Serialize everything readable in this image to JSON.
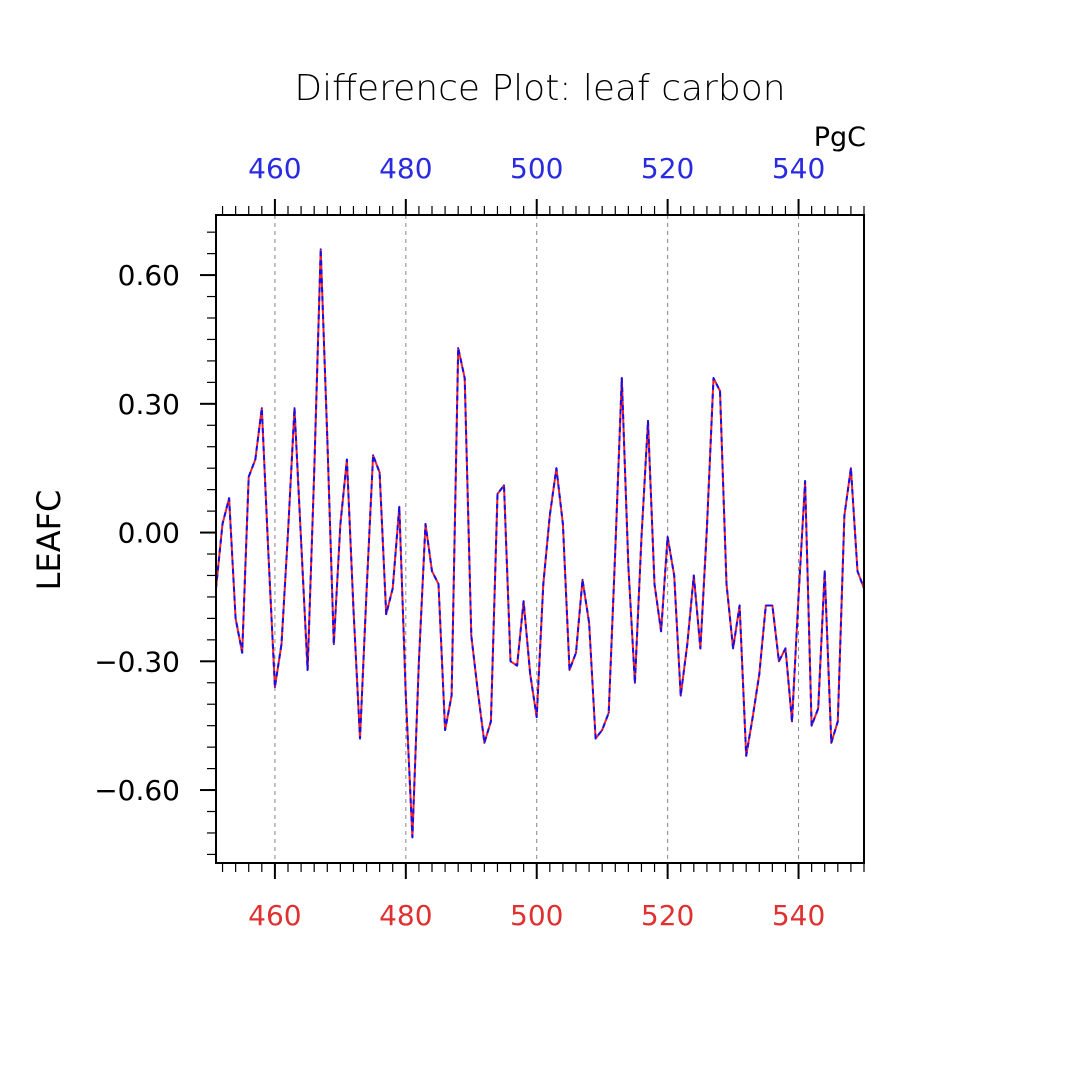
{
  "chart_data": {
    "type": "line",
    "title": "Difference Plot: leaf carbon",
    "units": "PgC",
    "ylabel": "LEAFC",
    "xlim": [
      451,
      550
    ],
    "ylim": [
      -0.77,
      0.74
    ],
    "x_ticks": [
      460,
      480,
      500,
      520,
      540
    ],
    "x_tick_labels": [
      "460",
      "480",
      "500",
      "520",
      "540"
    ],
    "y_ticks": [
      0.6,
      0.3,
      0.0,
      -0.3,
      -0.6
    ],
    "y_tick_labels": [
      "0.60",
      "0.30",
      "0.00",
      "−0.30",
      "−0.60"
    ],
    "grid": "vertical-dashed",
    "colors": {
      "top_tick_labels": "#2a2ae0",
      "bottom_tick_labels": "#e03030",
      "series_a": "#ff2020",
      "series_b": "#1010ee",
      "axes": "#000000",
      "grid": "#888888"
    },
    "series": [
      {
        "color": "#ff2020",
        "style": "solid",
        "x": [
          451,
          452,
          453,
          454,
          455,
          456,
          457,
          458,
          459,
          460,
          461,
          462,
          463,
          464,
          465,
          466,
          467,
          468,
          469,
          470,
          471,
          472,
          473,
          474,
          475,
          476,
          477,
          478,
          479,
          480,
          481,
          482,
          483,
          484,
          485,
          486,
          487,
          488,
          489,
          490,
          491,
          492,
          493,
          494,
          495,
          496,
          497,
          498,
          499,
          500,
          501,
          502,
          503,
          504,
          505,
          506,
          507,
          508,
          509,
          510,
          511,
          512,
          513,
          514,
          515,
          516,
          517,
          518,
          519,
          520,
          521,
          522,
          523,
          524,
          525,
          526,
          527,
          528,
          529,
          530,
          531,
          532,
          533,
          534,
          535,
          536,
          537,
          538,
          539,
          540,
          541,
          542,
          543,
          544,
          545,
          546,
          547,
          548,
          549,
          550
        ],
        "y": [
          -0.13,
          0.02,
          0.08,
          -0.2,
          -0.28,
          0.13,
          0.17,
          0.29,
          -0.05,
          -0.36,
          -0.26,
          0.0,
          0.29,
          -0.02,
          -0.32,
          0.14,
          0.66,
          0.22,
          -0.26,
          0.02,
          0.17,
          -0.18,
          -0.48,
          -0.14,
          0.18,
          0.14,
          -0.19,
          -0.13,
          0.06,
          -0.38,
          -0.71,
          -0.3,
          0.02,
          -0.09,
          -0.12,
          -0.46,
          -0.38,
          0.43,
          0.36,
          -0.24,
          -0.37,
          -0.49,
          -0.44,
          0.09,
          0.11,
          -0.3,
          -0.31,
          -0.16,
          -0.33,
          -0.43,
          -0.12,
          0.04,
          0.15,
          0.02,
          -0.32,
          -0.28,
          -0.11,
          -0.21,
          -0.48,
          -0.46,
          -0.42,
          -0.04,
          0.36,
          -0.08,
          -0.35,
          -0.01,
          0.26,
          -0.12,
          -0.23,
          -0.01,
          -0.1,
          -0.38,
          -0.26,
          -0.1,
          -0.27,
          0.01,
          0.36,
          0.33,
          -0.12,
          -0.27,
          -0.17,
          -0.52,
          -0.43,
          -0.33,
          -0.17,
          -0.17,
          -0.3,
          -0.27,
          -0.44,
          -0.15,
          0.12,
          -0.45,
          -0.41,
          -0.09,
          -0.49,
          -0.44,
          0.04,
          0.15,
          -0.09,
          -0.13
        ]
      },
      {
        "color": "#1010ee",
        "style": "dashed",
        "x": [
          451,
          452,
          453,
          454,
          455,
          456,
          457,
          458,
          459,
          460,
          461,
          462,
          463,
          464,
          465,
          466,
          467,
          468,
          469,
          470,
          471,
          472,
          473,
          474,
          475,
          476,
          477,
          478,
          479,
          480,
          481,
          482,
          483,
          484,
          485,
          486,
          487,
          488,
          489,
          490,
          491,
          492,
          493,
          494,
          495,
          496,
          497,
          498,
          499,
          500,
          501,
          502,
          503,
          504,
          505,
          506,
          507,
          508,
          509,
          510,
          511,
          512,
          513,
          514,
          515,
          516,
          517,
          518,
          519,
          520,
          521,
          522,
          523,
          524,
          525,
          526,
          527,
          528,
          529,
          530,
          531,
          532,
          533,
          534,
          535,
          536,
          537,
          538,
          539,
          540,
          541,
          542,
          543,
          544,
          545,
          546,
          547,
          548,
          549,
          550
        ],
        "y": [
          -0.13,
          0.02,
          0.08,
          -0.2,
          -0.28,
          0.13,
          0.17,
          0.29,
          -0.05,
          -0.36,
          -0.26,
          0.0,
          0.29,
          -0.02,
          -0.32,
          0.14,
          0.66,
          0.22,
          -0.26,
          0.02,
          0.17,
          -0.18,
          -0.48,
          -0.14,
          0.18,
          0.14,
          -0.19,
          -0.13,
          0.06,
          -0.38,
          -0.71,
          -0.3,
          0.02,
          -0.09,
          -0.12,
          -0.46,
          -0.38,
          0.43,
          0.36,
          -0.24,
          -0.37,
          -0.49,
          -0.44,
          0.09,
          0.11,
          -0.3,
          -0.31,
          -0.16,
          -0.33,
          -0.43,
          -0.12,
          0.04,
          0.15,
          0.02,
          -0.32,
          -0.28,
          -0.11,
          -0.21,
          -0.48,
          -0.46,
          -0.42,
          -0.04,
          0.36,
          -0.08,
          -0.35,
          -0.01,
          0.26,
          -0.12,
          -0.23,
          -0.01,
          -0.1,
          -0.38,
          -0.26,
          -0.1,
          -0.27,
          0.01,
          0.36,
          0.33,
          -0.12,
          -0.27,
          -0.17,
          -0.52,
          -0.43,
          -0.33,
          -0.17,
          -0.17,
          -0.3,
          -0.27,
          -0.44,
          -0.15,
          0.12,
          -0.45,
          -0.41,
          -0.09,
          -0.49,
          -0.44,
          0.04,
          0.15,
          -0.09,
          -0.13
        ]
      }
    ]
  }
}
